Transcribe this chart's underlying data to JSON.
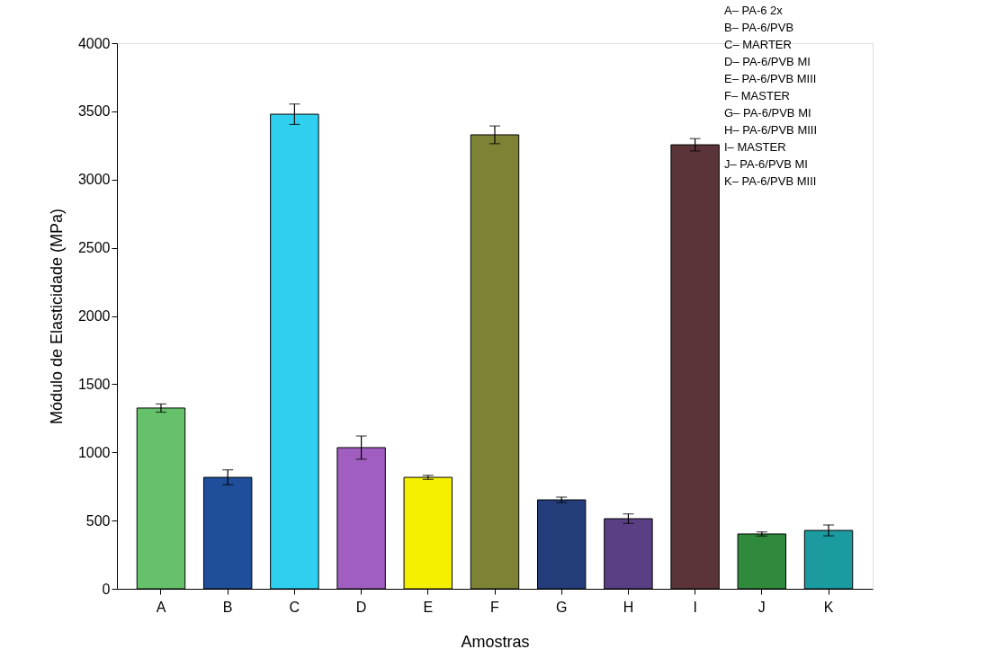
{
  "chart_data": {
    "type": "bar",
    "xlabel": "Amostras",
    "ylabel": "Módulo de Elasticidade (MPa)",
    "categories": [
      "A",
      "B",
      "C",
      "D",
      "E",
      "F",
      "G",
      "H",
      "I",
      "J",
      "K"
    ],
    "values": [
      1325,
      817,
      3479,
      1035,
      817,
      3328,
      652,
      514,
      3255,
      402,
      428
    ],
    "errors": [
      30,
      55,
      75,
      85,
      15,
      65,
      20,
      35,
      45,
      15,
      40
    ],
    "colors": [
      "#66c26a",
      "#1f4e9a",
      "#2fd0ef",
      "#a05fc0",
      "#f5f000",
      "#7d8234",
      "#233e7a",
      "#5b3f85",
      "#5a3438",
      "#2f8a3c",
      "#1b9a9f"
    ],
    "ylim": [
      0,
      4000
    ],
    "yticks": [
      0,
      500,
      1000,
      1500,
      2000,
      2500,
      3000,
      3500,
      4000
    ],
    "grid": false,
    "annotations": [
      "A– PA-6 2x",
      "B– PA-6/PVB",
      "C– MARTER",
      "D– PA-6/PVB MI",
      "E– PA-6/PVB MIII",
      "F– MASTER",
      "G– PA-6/PVB MI",
      "H– PA-6/PVB MIII",
      "I– MASTER",
      "J– PA-6/PVB MI",
      "K– PA-6/PVB MIII"
    ]
  }
}
